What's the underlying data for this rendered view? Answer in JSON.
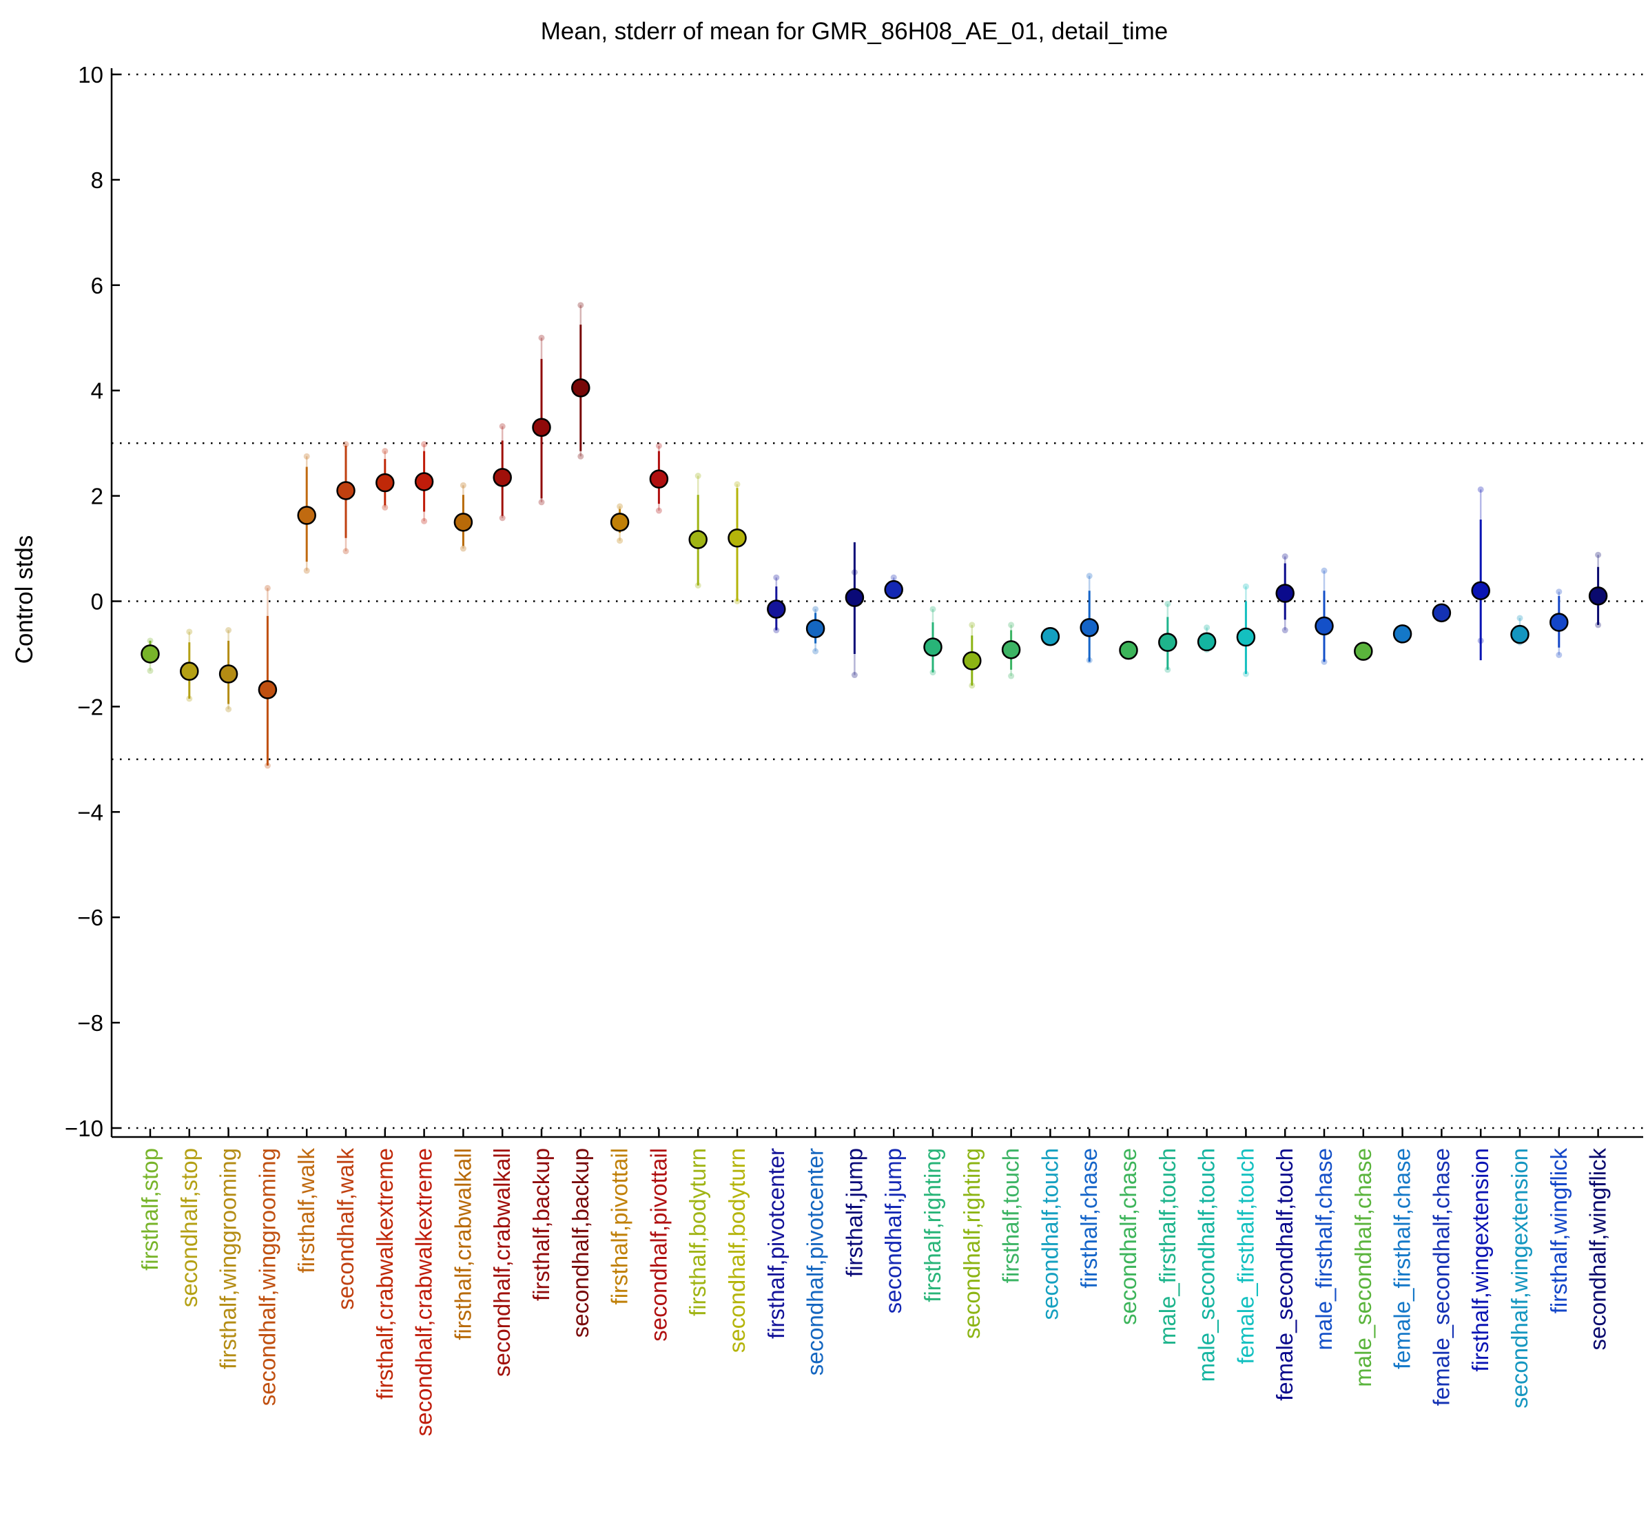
{
  "chart_data": {
    "type": "scatter",
    "title": "Mean, stderr of mean for GMR_86H08_AE_01, detail_time",
    "xlabel": "",
    "ylabel": "Control stds",
    "ylim": [
      -10,
      10
    ],
    "yticks": [
      -10,
      -8,
      -6,
      -4,
      -2,
      0,
      2,
      4,
      6,
      8,
      10
    ],
    "yticklabels": [
      "−10",
      "−8",
      "−6",
      "−4",
      "−2",
      "0",
      "2",
      "4",
      "6",
      "8",
      "10"
    ],
    "reference_lines": [
      10,
      3,
      0,
      -3,
      -10
    ],
    "grid": false,
    "legend": "none",
    "categories": [
      "firsthalf,stop",
      "secondhalf,stop",
      "firsthalf,winggrooming",
      "secondhalf,winggrooming",
      "firsthalf,walk",
      "secondhalf,walk",
      "firsthalf,crabwalkextreme",
      "secondhalf,crabwalkextreme",
      "firsthalf,crabwalkall",
      "secondhalf,crabwalkall",
      "firsthalf,backup",
      "secondhalf,backup",
      "firsthalf,pivottail",
      "secondhalf,pivottail",
      "firsthalf,bodyturn",
      "secondhalf,bodyturn",
      "firsthalf,pivotcenter",
      "secondhalf,pivotcenter",
      "firsthalf,jump",
      "secondhalf,jump",
      "firsthalf,righting",
      "secondhalf,righting",
      "firsthalf,touch",
      "secondhalf,touch",
      "firsthalf,chase",
      "secondhalf,chase",
      "male_firsthalf,touch",
      "male_secondhalf,touch",
      "female_firsthalf,touch",
      "female_secondhalf,touch",
      "male_firsthalf,chase",
      "male_secondhalf,chase",
      "female_firsthalf,chase",
      "female_secondhalf,chase",
      "firsthalf,wingextension",
      "secondhalf,wingextension",
      "firsthalf,wingflick",
      "secondhalf,wingflick"
    ],
    "colors": [
      "#78b42a",
      "#b4a014",
      "#b48c14",
      "#c05010",
      "#c06a10",
      "#c04010",
      "#c02808",
      "#c01c0a",
      "#b86a08",
      "#a0100a",
      "#900a0a",
      "#780808",
      "#c08008",
      "#b01010",
      "#a0b414",
      "#b4b40a",
      "#14149a",
      "#1466c0",
      "#0a0a78",
      "#1428b4",
      "#28b478",
      "#8cb414",
      "#3cb464",
      "#14a0c0",
      "#1464c8",
      "#3cb45a",
      "#1eb48c",
      "#14b4a0",
      "#14c0c0",
      "#0a0a8c",
      "#1450c8",
      "#5ab43c",
      "#1478c8",
      "#1432b4",
      "#0a14b4",
      "#1496c0",
      "#1446c8",
      "#0a0a6e"
    ],
    "series": [
      {
        "mean": [
          -1.0,
          -1.33,
          -1.38,
          -1.68,
          1.63,
          2.1,
          2.25,
          2.27,
          1.5,
          2.35,
          3.3,
          4.05,
          1.5,
          2.32,
          1.17,
          1.2,
          -0.15,
          -0.52,
          0.07,
          0.22,
          -0.87,
          -1.13,
          -0.92,
          -0.67,
          -0.5,
          -0.93,
          -0.78,
          -0.77,
          -0.68,
          0.15,
          -0.47,
          -0.95,
          -0.62,
          -0.22,
          0.2,
          -0.63,
          -0.4,
          0.1
        ],
        "err_lo": [
          -1.18,
          -1.85,
          -1.95,
          -3.12,
          0.75,
          1.2,
          1.82,
          1.7,
          1.05,
          1.62,
          1.95,
          2.85,
          1.3,
          1.85,
          0.3,
          0.0,
          -0.55,
          -0.8,
          -1.0,
          0.15,
          -1.35,
          -1.6,
          -1.3,
          -0.78,
          -1.15,
          -1.02,
          -1.3,
          -0.92,
          -1.38,
          -0.35,
          -1.15,
          -1.02,
          -0.72,
          -0.3,
          -1.12,
          -0.78,
          -0.88,
          -0.45
        ],
        "err_hi": [
          -0.75,
          -0.78,
          -0.75,
          -0.28,
          2.55,
          2.95,
          2.7,
          2.85,
          2.02,
          3.05,
          4.6,
          5.25,
          1.75,
          2.85,
          2.02,
          2.15,
          0.28,
          -0.22,
          1.12,
          0.3,
          -0.4,
          -0.65,
          -0.55,
          -0.57,
          0.2,
          -0.85,
          -0.3,
          -0.62,
          0.0,
          0.72,
          0.2,
          -0.88,
          -0.53,
          -0.14,
          1.55,
          -0.45,
          0.1,
          0.65
        ],
        "ext_lo": [
          -1.32,
          -1.85,
          -2.05,
          -3.12,
          0.58,
          0.95,
          1.78,
          1.52,
          1.0,
          1.58,
          1.88,
          2.75,
          1.15,
          1.72,
          0.3,
          0.0,
          -0.55,
          -0.95,
          -1.4,
          0.15,
          -1.35,
          -1.6,
          -1.42,
          -0.78,
          -1.12,
          -1.02,
          -1.3,
          -0.92,
          -1.38,
          -0.55,
          -1.15,
          -1.02,
          -0.72,
          -0.3,
          -0.75,
          -0.78,
          -1.02,
          -0.45
        ],
        "ext_hi": [
          -0.75,
          -0.58,
          -0.55,
          0.25,
          2.75,
          2.98,
          2.85,
          2.98,
          2.2,
          3.32,
          5.0,
          5.62,
          1.8,
          2.95,
          2.38,
          2.22,
          0.45,
          -0.15,
          0.55,
          0.45,
          -0.15,
          -0.45,
          -0.45,
          -0.57,
          0.48,
          -0.85,
          -0.05,
          -0.5,
          0.28,
          0.85,
          0.58,
          -0.88,
          -0.53,
          -0.14,
          2.12,
          -0.32,
          0.18,
          0.88
        ]
      }
    ]
  }
}
